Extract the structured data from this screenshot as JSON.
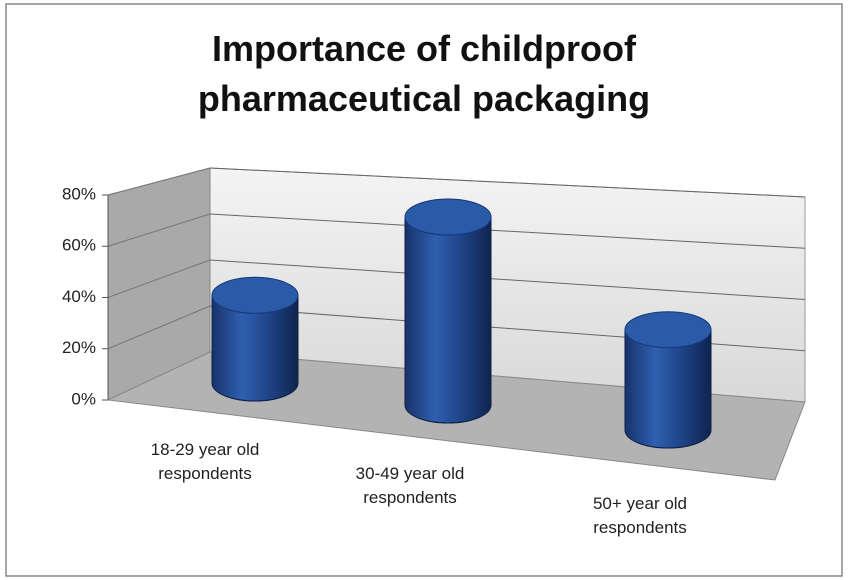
{
  "chart_data": {
    "type": "bar3d_cylinder",
    "title": "Importance of childproof pharmaceutical packaging",
    "categories": [
      "18-29 year old respondents",
      "30-49 year old respondents",
      "50+ year old respondents"
    ],
    "values": [
      35,
      75,
      40
    ],
    "color": "#1f4e9a",
    "ylim": [
      0,
      80
    ],
    "yticks": [
      {
        "value": 0,
        "label": "0%"
      },
      {
        "value": 20,
        "label": "20%"
      },
      {
        "value": 40,
        "label": "40%"
      },
      {
        "value": 60,
        "label": "60%"
      },
      {
        "value": 80,
        "label": "80%"
      }
    ],
    "grid": true
  }
}
